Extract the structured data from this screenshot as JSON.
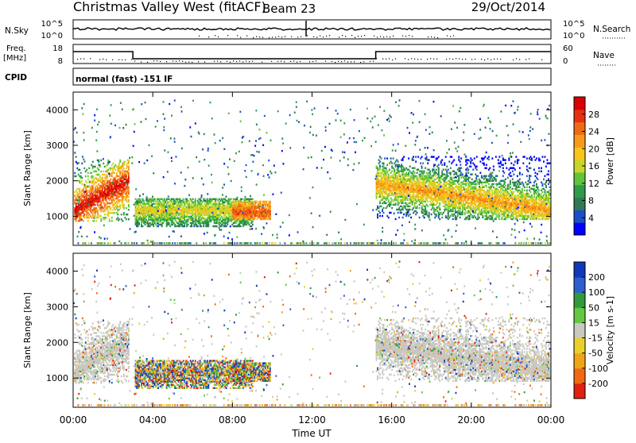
{
  "header": {
    "station": "Christmas Valley West (fitACF)",
    "beam": "Beam 23",
    "date": "29/Oct/2014"
  },
  "noise_panel": {
    "left_label": "N.Sky",
    "left_ticks": [
      "10^5",
      "10^0"
    ],
    "right_label": "N.Search",
    "right_ticks": [
      "10^5",
      "10^0"
    ]
  },
  "freq_panel": {
    "left_label_1": "Freq.",
    "left_label_2": "[MHz]",
    "left_ticks": [
      "18",
      "8"
    ],
    "right_label": "Nave",
    "right_ticks": [
      "60",
      "0"
    ]
  },
  "cpid_panel": {
    "label": "CPID",
    "text": "normal (fast) -151 IF"
  },
  "colors": {
    "power_scale": [
      "#0000ff",
      "#1a4fc8",
      "#2f7a55",
      "#2e9a4a",
      "#5fc43c",
      "#c8d62a",
      "#f7c51e",
      "#f79a1a",
      "#f06a14",
      "#e63012",
      "#d80000"
    ],
    "velocity_scale": [
      "#1038b8",
      "#2d5fd0",
      "#2f9a3e",
      "#62c841",
      "#c8c8c0",
      "#e9d12a",
      "#f0a418",
      "#ef6a12",
      "#e02010"
    ],
    "ground_scatter": "#c8c8c0"
  },
  "chart_data": [
    {
      "type": "heatmap",
      "name": "power",
      "ylabel": "Slant Range [km]",
      "yticks": [
        "1000",
        "2000",
        "3000",
        "4000"
      ],
      "ylim": [
        180,
        4500
      ],
      "xlim_hours": [
        0,
        24
      ],
      "colorbar_label": "Power [dB]",
      "colorbar_ticks": [
        "4",
        "8",
        "12",
        "16",
        "20",
        "24",
        "28"
      ],
      "colorbar_range": [
        0,
        32
      ],
      "features": [
        {
          "t": [
            0.0,
            2.8
          ],
          "r": [
            900,
            2600
          ],
          "peak_km": [
            1150,
            2000
          ],
          "level_db": 30
        },
        {
          "t": [
            3.1,
            9.0
          ],
          "r": [
            700,
            1500
          ],
          "peak_km": 1150,
          "level_db": 20
        },
        {
          "t": [
            8.0,
            9.9
          ],
          "r": [
            900,
            1400
          ],
          "peak_km": 1100,
          "level_db": 26
        },
        {
          "t": [
            15.2,
            23.9
          ],
          "r": [
            900,
            2600
          ],
          "peak_km": [
            1900,
            1200
          ],
          "level_db": 22
        }
      ]
    },
    {
      "type": "heatmap",
      "name": "velocity",
      "ylabel": "Slant Range [km]",
      "yticks": [
        "1000",
        "2000",
        "3000",
        "4000"
      ],
      "ylim": [
        180,
        4500
      ],
      "colorbar_label": "Velocity [m s-1]",
      "colorbar_ticks": [
        "200",
        "100",
        "50",
        "15",
        "-15",
        "-50",
        "-100",
        "-200"
      ],
      "colorbar_range": [
        -250,
        250
      ],
      "xlabel": "Time UT",
      "xticks": [
        "00:00",
        "04:00",
        "08:00",
        "12:00",
        "16:00",
        "20:00",
        "00:00"
      ],
      "xtick_hours": [
        0,
        4,
        8,
        12,
        16,
        20,
        24
      ]
    }
  ]
}
